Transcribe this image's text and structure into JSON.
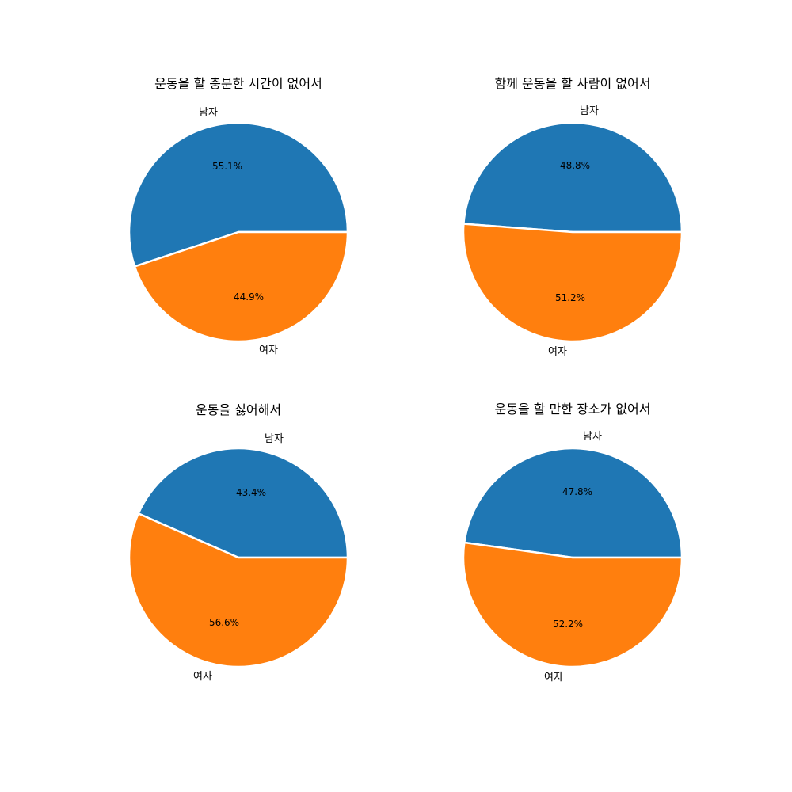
{
  "colors": {
    "male": "#1f77b4",
    "female": "#ff7f0e"
  },
  "chart_data": [
    {
      "type": "pie",
      "title": "운동을 할 충분한 시간이 없어서",
      "labels": [
        "남자",
        "여자"
      ],
      "values": [
        55.1,
        44.9
      ],
      "value_labels": [
        "55.1%",
        "44.9%"
      ]
    },
    {
      "type": "pie",
      "title": "함께 운동을 할 사람이 없어서",
      "labels": [
        "남자",
        "여자"
      ],
      "values": [
        48.8,
        51.2
      ],
      "value_labels": [
        "48.8%",
        "51.2%"
      ]
    },
    {
      "type": "pie",
      "title": "운동을 싫어해서",
      "labels": [
        "남자",
        "여자"
      ],
      "values": [
        43.4,
        56.6
      ],
      "value_labels": [
        "43.4%",
        "56.6%"
      ]
    },
    {
      "type": "pie",
      "title": "운동을 할 만한 장소가 없어서",
      "labels": [
        "남자",
        "여자"
      ],
      "values": [
        47.8,
        52.2
      ],
      "value_labels": [
        "47.8%",
        "52.2%"
      ]
    }
  ]
}
